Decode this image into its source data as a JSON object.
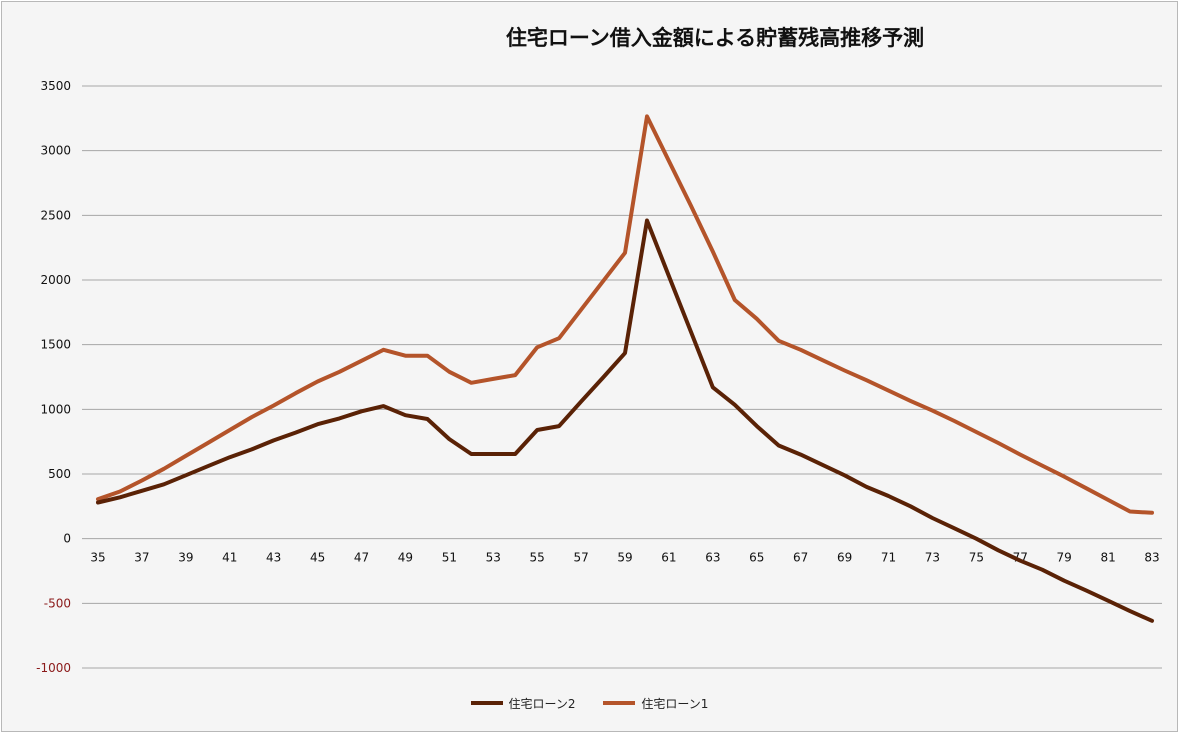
{
  "colors": {
    "series1": "#5a2206",
    "series2": "#b4542a",
    "grid": "#a6a6a6",
    "background": "#f5f5f5"
  },
  "chart_data": {
    "type": "line",
    "title": "住宅ローン借入金額による貯蓄残高推移予測",
    "xlabel": "",
    "ylabel": "",
    "xlim": [
      35,
      83
    ],
    "ylim": [
      -1000,
      3500
    ],
    "y_ticks": [
      -1000,
      -500,
      0,
      500,
      1000,
      1500,
      2000,
      2500,
      3000,
      3500
    ],
    "x_ticks": [
      35,
      37,
      39,
      41,
      43,
      45,
      47,
      49,
      51,
      53,
      55,
      57,
      59,
      61,
      63,
      65,
      67,
      69,
      71,
      73,
      75,
      77,
      79,
      81,
      83
    ],
    "grid": true,
    "legend_position": "bottom",
    "x": [
      35,
      36,
      37,
      38,
      39,
      40,
      41,
      42,
      43,
      44,
      45,
      46,
      47,
      48,
      49,
      50,
      51,
      52,
      53,
      54,
      55,
      56,
      57,
      58,
      59,
      60,
      61,
      62,
      63,
      64,
      65,
      66,
      67,
      68,
      69,
      70,
      71,
      72,
      73,
      74,
      75,
      76,
      77,
      78,
      79,
      80,
      81,
      82,
      83
    ],
    "series": [
      {
        "name": "住宅ローン2",
        "values": [
          280,
          320,
          370,
          420,
          490,
          560,
          630,
          690,
          760,
          820,
          885,
          930,
          985,
          1025,
          955,
          925,
          770,
          655,
          655,
          655,
          840,
          870,
          1060,
          1245,
          1435,
          2460,
          2030,
          1600,
          1170,
          1035,
          870,
          720,
          650,
          570,
          490,
          400,
          330,
          250,
          160,
          80,
          0,
          -90,
          -170,
          -240,
          -325,
          -400,
          -480,
          -560,
          -635
        ]
      },
      {
        "name": "住宅ローン1",
        "values": [
          305,
          365,
          450,
          540,
          640,
          740,
          840,
          940,
          1030,
          1125,
          1215,
          1290,
          1375,
          1460,
          1415,
          1415,
          1290,
          1205,
          1235,
          1265,
          1480,
          1550,
          1770,
          1990,
          2210,
          3265,
          2920,
          2575,
          2220,
          1845,
          1700,
          1530,
          1460,
          1380,
          1300,
          1225,
          1145,
          1065,
          990,
          910,
          825,
          740,
          650,
          565,
          480,
          390,
          300,
          210,
          200
        ]
      }
    ]
  },
  "legend": [
    {
      "label": "住宅ローン2"
    },
    {
      "label": "住宅ローン1"
    }
  ]
}
